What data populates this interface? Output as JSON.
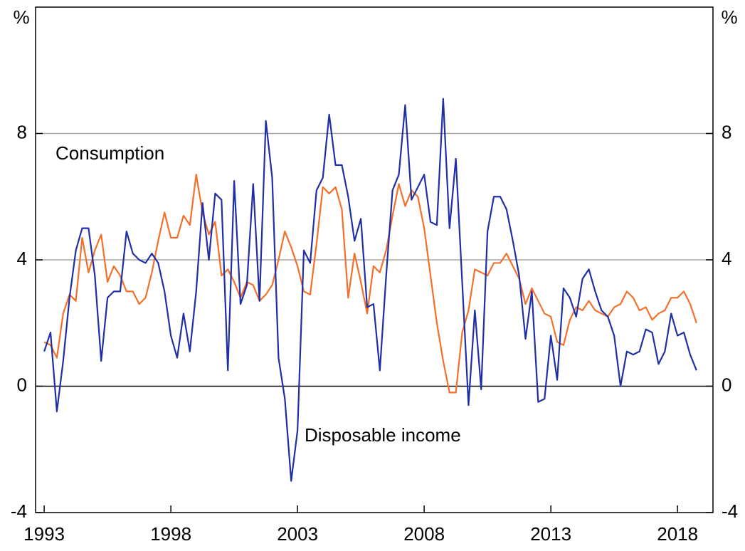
{
  "chart_data": {
    "type": "line",
    "y_label": "%",
    "y2_label": "%",
    "xlim": [
      1992.66,
      2019.4
    ],
    "xticks": [
      1993,
      1998,
      2003,
      2008,
      2013,
      2018
    ],
    "ylim": [
      -4,
      12
    ],
    "yticks": [
      -4,
      0,
      4,
      8
    ],
    "y2lim": [
      -4,
      12
    ],
    "y2ticks": [
      -4,
      0,
      4,
      8
    ],
    "grid": true,
    "x": [
      1993,
      1993.25,
      1993.5,
      1993.75,
      1994,
      1994.25,
      1994.5,
      1994.75,
      1995,
      1995.25,
      1995.5,
      1995.75,
      1996,
      1996.25,
      1996.5,
      1996.75,
      1997,
      1997.25,
      1997.5,
      1997.75,
      1998,
      1998.25,
      1998.5,
      1998.75,
      1999,
      1999.25,
      1999.5,
      1999.75,
      2000,
      2000.25,
      2000.5,
      2000.75,
      2001,
      2001.25,
      2001.5,
      2001.75,
      2002,
      2002.25,
      2002.5,
      2002.75,
      2003,
      2003.25,
      2003.5,
      2003.75,
      2004,
      2004.25,
      2004.5,
      2004.75,
      2005,
      2005.25,
      2005.5,
      2005.75,
      2006,
      2006.25,
      2006.5,
      2006.75,
      2007,
      2007.25,
      2007.5,
      2007.75,
      2008,
      2008.25,
      2008.5,
      2008.75,
      2009,
      2009.25,
      2009.5,
      2009.75,
      2010,
      2010.25,
      2010.5,
      2010.75,
      2011,
      2011.25,
      2011.5,
      2011.75,
      2012,
      2012.25,
      2012.5,
      2012.75,
      2013,
      2013.25,
      2013.5,
      2013.75,
      2014,
      2014.25,
      2014.5,
      2014.75,
      2015,
      2015.25,
      2015.5,
      2015.75,
      2016,
      2016.25,
      2016.5,
      2016.75,
      2017,
      2017.25,
      2017.5,
      2017.75,
      2018,
      2018.25,
      2018.5,
      2018.75
    ],
    "series": [
      {
        "name": "Consumption",
        "color": "#f4702a",
        "values": [
          1.4,
          1.3,
          0.9,
          2.3,
          2.9,
          2.7,
          4.7,
          3.6,
          4.3,
          4.8,
          3.3,
          3.8,
          3.5,
          3.0,
          3.0,
          2.6,
          2.8,
          3.6,
          4.6,
          5.5,
          4.7,
          4.7,
          5.4,
          5.1,
          6.7,
          5.5,
          4.8,
          5.2,
          3.5,
          3.7,
          3.3,
          2.8,
          3.3,
          3.2,
          2.7,
          2.9,
          3.2,
          4.0,
          4.9,
          4.4,
          3.8,
          3.0,
          2.9,
          4.5,
          6.3,
          6.1,
          6.3,
          5.6,
          2.8,
          4.2,
          3.3,
          2.3,
          3.8,
          3.6,
          4.3,
          5.4,
          6.4,
          5.7,
          6.2,
          6.0,
          5.0,
          3.5,
          2.0,
          0.8,
          -0.2,
          -0.2,
          1.7,
          2.4,
          3.7,
          3.6,
          3.5,
          3.9,
          3.9,
          4.2,
          3.8,
          3.4,
          2.6,
          3.1,
          2.7,
          2.3,
          2.2,
          1.4,
          1.3,
          2.1,
          2.5,
          2.4,
          2.7,
          2.4,
          2.3,
          2.2,
          2.5,
          2.6,
          3.0,
          2.8,
          2.4,
          2.5,
          2.1,
          2.3,
          2.4,
          2.8,
          2.8,
          3.0,
          2.6,
          2.0
        ]
      },
      {
        "name": "Disposable income",
        "color": "#1f2fa8",
        "values": [
          1.1,
          1.7,
          -0.8,
          0.8,
          2.8,
          4.3,
          5.0,
          5.0,
          3.5,
          0.8,
          2.8,
          3.0,
          3.0,
          4.9,
          4.2,
          4.0,
          3.9,
          4.2,
          3.9,
          3.0,
          1.6,
          0.9,
          2.3,
          1.1,
          3.0,
          5.8,
          4.0,
          6.1,
          5.9,
          0.5,
          6.5,
          2.6,
          3.2,
          6.4,
          2.7,
          8.4,
          6.6,
          0.9,
          -0.4,
          -3.0,
          -1.4,
          4.3,
          3.9,
          6.2,
          6.6,
          8.6,
          7.0,
          7.0,
          6.0,
          4.6,
          5.3,
          2.5,
          2.6,
          0.5,
          3.5,
          6.2,
          6.7,
          8.9,
          5.9,
          6.3,
          6.7,
          5.2,
          5.1,
          9.1,
          5.0,
          7.2,
          3.3,
          -0.6,
          2.4,
          -0.1,
          4.9,
          6.0,
          6.0,
          5.6,
          4.6,
          3.5,
          1.5,
          3.0,
          -0.5,
          -0.4,
          1.6,
          0.2,
          3.1,
          2.8,
          2.2,
          3.4,
          3.7,
          3.0,
          2.4,
          2.2,
          1.6,
          0.0,
          1.1,
          1.0,
          1.1,
          1.8,
          1.7,
          0.7,
          1.1,
          2.3,
          1.6,
          1.7,
          1.0,
          0.5
        ]
      }
    ]
  }
}
